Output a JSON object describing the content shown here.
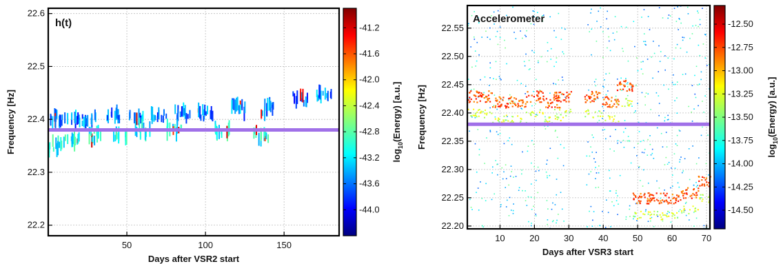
{
  "chart_data": [
    {
      "type": "scatter",
      "title": "h(t)",
      "xlabel": "Days after VSR2 start",
      "ylabel": "Frequency [Hz]",
      "xlim": [
        0,
        185
      ],
      "ylim": [
        22.18,
        22.61
      ],
      "xticks": [
        50,
        100,
        150
      ],
      "yticks": [
        22.2,
        22.3,
        22.4,
        22.5,
        22.6
      ],
      "grid": true,
      "reference_line": {
        "y": 22.38,
        "color": "#a070e8"
      },
      "colorbar": {
        "label": "log10(Energy) [a.u.]",
        "range": [
          -44.4,
          -40.9
        ],
        "ticks": [
          "-41.2",
          "-41.6",
          "-42.0",
          "-42.4",
          "-42.8",
          "-43.2",
          "-43.6",
          "-44.0"
        ]
      },
      "series": [
        {
          "values": [
            {
              "x": 5,
              "y": 22.4
            },
            {
              "x": 15,
              "y": 22.4
            },
            {
              "x": 25,
              "y": 22.4
            },
            {
              "x": 40,
              "y": 22.41
            },
            {
              "x": 55,
              "y": 22.4
            },
            {
              "x": 70,
              "y": 22.41
            },
            {
              "x": 85,
              "y": 22.41
            },
            {
              "x": 100,
              "y": 22.41
            },
            {
              "x": 120,
              "y": 22.42
            },
            {
              "x": 140,
              "y": 22.42
            },
            {
              "x": 160,
              "y": 22.44
            },
            {
              "x": 175,
              "y": 22.45
            },
            {
              "x": 5,
              "y": 22.35
            },
            {
              "x": 15,
              "y": 22.36
            },
            {
              "x": 30,
              "y": 22.37
            },
            {
              "x": 45,
              "y": 22.37
            },
            {
              "x": 60,
              "y": 22.38
            },
            {
              "x": 80,
              "y": 22.38
            },
            {
              "x": 110,
              "y": 22.38
            },
            {
              "x": 135,
              "y": 22.37
            }
          ]
        }
      ]
    },
    {
      "type": "scatter",
      "title": "Accelerometer",
      "xlabel": "Days after VSR3 start",
      "ylabel": "Frequency [Hz]",
      "xlim": [
        0.5,
        71
      ],
      "ylim": [
        22.195,
        22.59
      ],
      "xticks": [
        10,
        20,
        30,
        40,
        50,
        60,
        70
      ],
      "yticks": [
        22.2,
        22.25,
        22.3,
        22.35,
        22.4,
        22.45,
        22.5,
        22.55
      ],
      "grid": true,
      "reference_line": {
        "y": 22.38,
        "color": "#a070e8"
      },
      "colorbar": {
        "label": "log10(Energy) [a.u.]",
        "range": [
          -14.7,
          -12.3
        ],
        "ticks": [
          "-12.50",
          "-12.75",
          "-13.00",
          "-13.25",
          "-13.50",
          "-13.75",
          "-14.00",
          "-14.25",
          "-14.50"
        ]
      },
      "series": [
        {
          "values": [
            {
              "x": 2,
              "y": 22.43
            },
            {
              "x": 5,
              "y": 22.43
            },
            {
              "x": 10,
              "y": 22.42
            },
            {
              "x": 15,
              "y": 22.42
            },
            {
              "x": 20,
              "y": 22.43
            },
            {
              "x": 25,
              "y": 22.42
            },
            {
              "x": 28,
              "y": 22.43
            },
            {
              "x": 37,
              "y": 22.43
            },
            {
              "x": 42,
              "y": 22.42
            },
            {
              "x": 46,
              "y": 22.45
            },
            {
              "x": 51,
              "y": 22.25
            },
            {
              "x": 55,
              "y": 22.25
            },
            {
              "x": 60,
              "y": 22.25
            },
            {
              "x": 65,
              "y": 22.26
            },
            {
              "x": 70,
              "y": 22.28
            }
          ]
        }
      ]
    }
  ]
}
